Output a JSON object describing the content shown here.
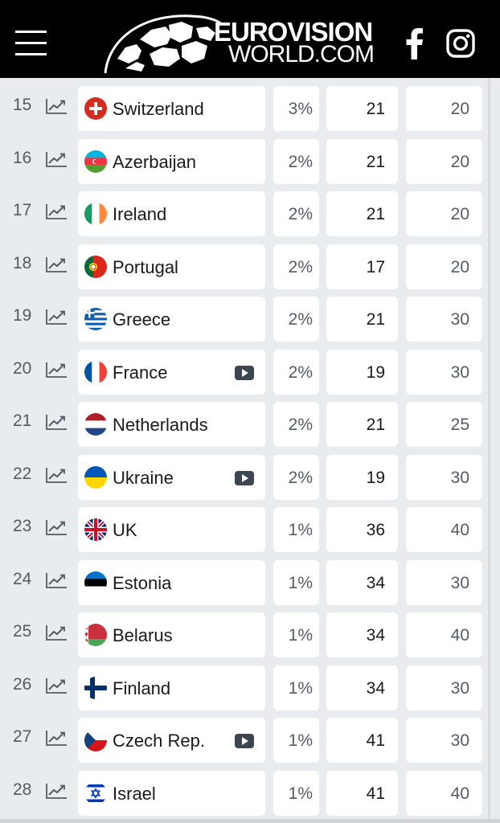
{
  "header": {
    "logo_line1": "EUROVISION",
    "logo_line2": "WORLD.COM",
    "menu_icon": "hamburger-menu-icon",
    "social": [
      "facebook-icon",
      "instagram-icon"
    ]
  },
  "colors": {
    "header_bg": "#000000",
    "page_bg": "#e9ecef",
    "cell_bg": "#ffffff",
    "text_muted": "#555b63"
  },
  "rows": [
    {
      "rank": "15",
      "country": "Switzerland",
      "flag": "switzerland-flag-icon",
      "video": false,
      "pct": "3%",
      "a": "21",
      "b": "20"
    },
    {
      "rank": "16",
      "country": "Azerbaijan",
      "flag": "azerbaijan-flag-icon",
      "video": false,
      "pct": "2%",
      "a": "21",
      "b": "20"
    },
    {
      "rank": "17",
      "country": "Ireland",
      "flag": "ireland-flag-icon",
      "video": false,
      "pct": "2%",
      "a": "21",
      "b": "20"
    },
    {
      "rank": "18",
      "country": "Portugal",
      "flag": "portugal-flag-icon",
      "video": false,
      "pct": "2%",
      "a": "17",
      "b": "20"
    },
    {
      "rank": "19",
      "country": "Greece",
      "flag": "greece-flag-icon",
      "video": false,
      "pct": "2%",
      "a": "21",
      "b": "30"
    },
    {
      "rank": "20",
      "country": "France",
      "flag": "france-flag-icon",
      "video": true,
      "pct": "2%",
      "a": "19",
      "b": "30"
    },
    {
      "rank": "21",
      "country": "Netherlands",
      "flag": "netherlands-flag-icon",
      "video": false,
      "pct": "2%",
      "a": "21",
      "b": "25"
    },
    {
      "rank": "22",
      "country": "Ukraine",
      "flag": "ukraine-flag-icon",
      "video": true,
      "pct": "2%",
      "a": "19",
      "b": "30"
    },
    {
      "rank": "23",
      "country": "UK",
      "flag": "uk-flag-icon",
      "video": false,
      "pct": "1%",
      "a": "36",
      "b": "40"
    },
    {
      "rank": "24",
      "country": "Estonia",
      "flag": "estonia-flag-icon",
      "video": false,
      "pct": "1%",
      "a": "34",
      "b": "30"
    },
    {
      "rank": "25",
      "country": "Belarus",
      "flag": "belarus-flag-icon",
      "video": false,
      "pct": "1%",
      "a": "34",
      "b": "40"
    },
    {
      "rank": "26",
      "country": "Finland",
      "flag": "finland-flag-icon",
      "video": false,
      "pct": "1%",
      "a": "34",
      "b": "30"
    },
    {
      "rank": "27",
      "country": "Czech Rep.",
      "flag": "czech-flag-icon",
      "video": true,
      "pct": "1%",
      "a": "41",
      "b": "30"
    },
    {
      "rank": "28",
      "country": "Israel",
      "flag": "israel-flag-icon",
      "video": false,
      "pct": "1%",
      "a": "41",
      "b": "40"
    }
  ]
}
